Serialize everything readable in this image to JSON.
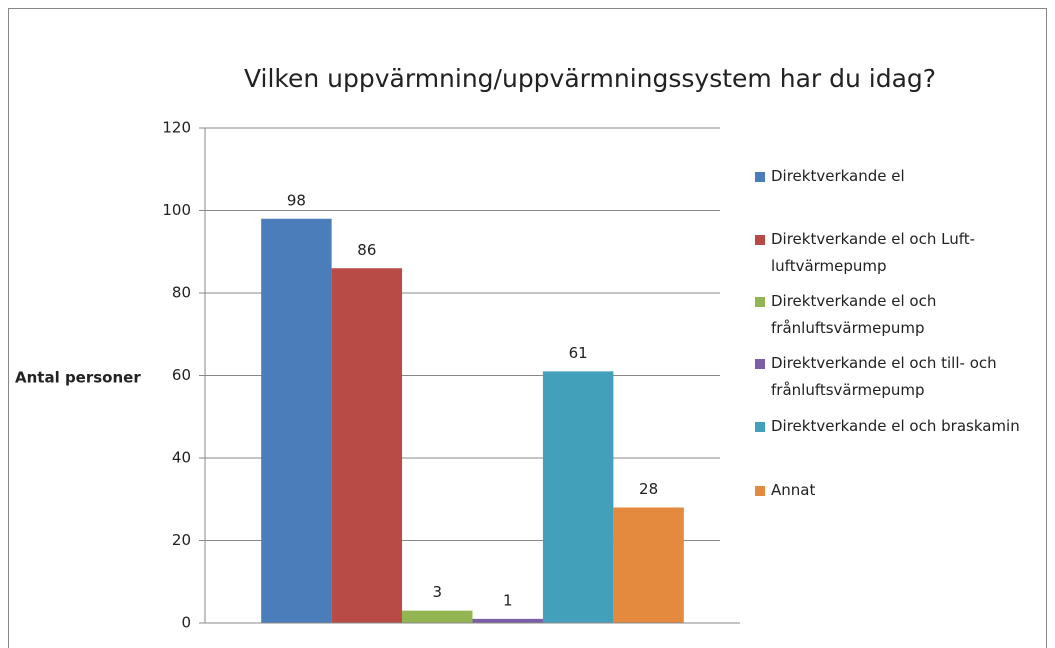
{
  "chart_data": {
    "type": "bar",
    "title": "Vilken uppvärmning/uppvärmningssystem har du idag?",
    "y_label": "Antal personer",
    "categories": [
      null
    ],
    "series": [
      {
        "name": "Direktverkande el",
        "color": "#4a7dba",
        "values": [
          98
        ]
      },
      {
        "name": "Direktverkande el och Luft-luftvärmepump",
        "color": "#b84b46",
        "values": [
          86
        ]
      },
      {
        "name": "Direktverkande el och frånluftsvärmepump",
        "color": "#93b551",
        "values": [
          3
        ]
      },
      {
        "name": "Direktverkande el och till- och frånluftsvärmepump",
        "color": "#7b5ea6",
        "values": [
          1
        ]
      },
      {
        "name": "Direktverkande el och braskamin",
        "color": "#43a0ba",
        "values": [
          61
        ]
      },
      {
        "name": "Annat",
        "color": "#e38a3e",
        "values": [
          28
        ]
      }
    ],
    "ylim": [
      0,
      120
    ],
    "yticks": [
      0,
      20,
      40,
      60,
      80,
      100,
      120
    ],
    "grid": true,
    "legend": "right"
  }
}
